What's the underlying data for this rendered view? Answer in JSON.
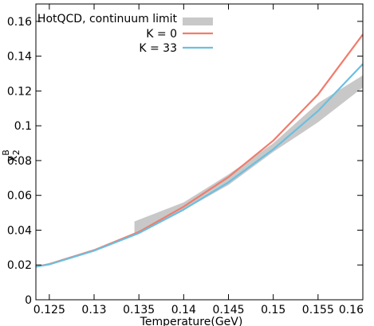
{
  "chart_data": {
    "type": "line",
    "xlabel": "Temperature(GeV)",
    "ylabel": "χ",
    "ylabel_sup": "B",
    "ylabel_sub": "2",
    "xlim": [
      0.1235,
      0.16
    ],
    "ylim": [
      0,
      0.17
    ],
    "x_ticks": [
      {
        "value": 0.125,
        "label": "0.125"
      },
      {
        "value": 0.13,
        "label": "0.13"
      },
      {
        "value": 0.135,
        "label": "0.135"
      },
      {
        "value": 0.14,
        "label": "0.14"
      },
      {
        "value": 0.145,
        "label": "0.145"
      },
      {
        "value": 0.15,
        "label": "0.15"
      },
      {
        "value": 0.155,
        "label": "0.155"
      },
      {
        "value": 0.16,
        "label": "0.16"
      }
    ],
    "y_ticks": [
      {
        "value": 0,
        "label": "0"
      },
      {
        "value": 0.02,
        "label": "0.02"
      },
      {
        "value": 0.04,
        "label": "0.04"
      },
      {
        "value": 0.06,
        "label": "0.06"
      },
      {
        "value": 0.08,
        "label": "0.08"
      },
      {
        "value": 0.1,
        "label": "0.1"
      },
      {
        "value": 0.12,
        "label": "0.12"
      },
      {
        "value": 0.14,
        "label": "0.14"
      },
      {
        "value": 0.16,
        "label": "0.16"
      }
    ],
    "legend_position": "top-right",
    "band": {
      "name": "HotQCD, continuum limit",
      "color": "#c8c8c8",
      "x": [
        0.1345,
        0.14,
        0.145,
        0.15,
        0.155,
        0.16
      ],
      "lower": [
        0.037,
        0.0515,
        0.066,
        0.085,
        0.102,
        0.122
      ],
      "upper": [
        0.045,
        0.056,
        0.072,
        0.09,
        0.113,
        0.129
      ]
    },
    "series": [
      {
        "name": "K = 0",
        "color": "#f07c6c",
        "x": [
          0.1235,
          0.125,
          0.13,
          0.135,
          0.14,
          0.145,
          0.15,
          0.155,
          0.16
        ],
        "values": [
          0.019,
          0.0205,
          0.0285,
          0.039,
          0.0535,
          0.0705,
          0.0915,
          0.118,
          0.1525
        ]
      },
      {
        "name": "K = 33",
        "color": "#6cbfe0",
        "x": [
          0.1235,
          0.125,
          0.13,
          0.135,
          0.14,
          0.145,
          0.15,
          0.155,
          0.16
        ],
        "values": [
          0.019,
          0.0203,
          0.0282,
          0.0383,
          0.0518,
          0.0675,
          0.0865,
          0.1085,
          0.1355
        ]
      }
    ]
  }
}
